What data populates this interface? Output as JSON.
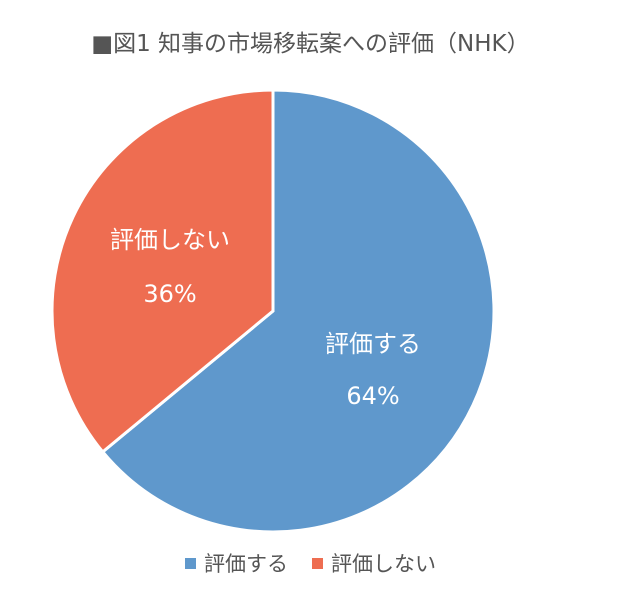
{
  "chart_data": {
    "type": "pie",
    "title": "■図1 知事の市場移転案への評価（NHK）",
    "slices": [
      {
        "label": "評価する",
        "value": 64,
        "value_label": "64%",
        "color": "#5f98cc"
      },
      {
        "label": "評価しない",
        "value": 36,
        "value_label": "36%",
        "color": "#ee6d51"
      }
    ],
    "legend_position": "bottom"
  }
}
